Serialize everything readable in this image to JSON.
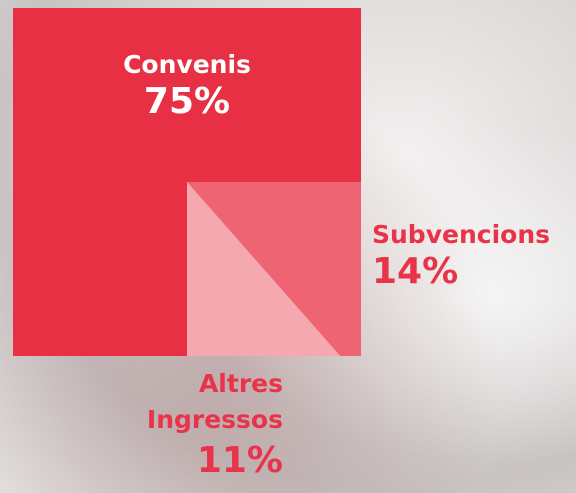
{
  "chart_data": {
    "type": "area-square",
    "categories": [
      "Convenis",
      "Subvencions",
      "Altres Ingressos"
    ],
    "values": [
      75,
      14,
      11
    ],
    "value_labels": [
      "75%",
      "14%",
      "11%"
    ],
    "colors": [
      "#e83045",
      "#ef6472",
      "#f6a8b0"
    ]
  }
}
